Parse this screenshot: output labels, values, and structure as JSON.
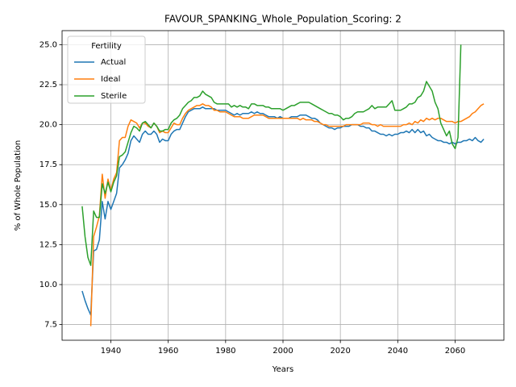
{
  "chart_data": {
    "type": "line",
    "title": "FAVOUR_SPANKING_Whole_Population_Scoring: 2",
    "x_label": "Years",
    "y_label": "% of Whole Population",
    "legend_title": "Fertility",
    "legend_position": "upper left",
    "grid": true,
    "x": [
      1930,
      1931,
      1932,
      1933,
      1934,
      1935,
      1936,
      1937,
      1938,
      1939,
      1940,
      1941,
      1942,
      1943,
      1944,
      1945,
      1946,
      1947,
      1948,
      1949,
      1950,
      1951,
      1952,
      1953,
      1954,
      1955,
      1956,
      1957,
      1958,
      1959,
      1960,
      1961,
      1962,
      1963,
      1964,
      1965,
      1966,
      1967,
      1968,
      1969,
      1970,
      1971,
      1972,
      1973,
      1974,
      1975,
      1976,
      1977,
      1978,
      1979,
      1980,
      1981,
      1982,
      1983,
      1984,
      1985,
      1986,
      1987,
      1988,
      1989,
      1990,
      1991,
      1992,
      1993,
      1994,
      1995,
      1996,
      1997,
      1998,
      1999,
      2000,
      2001,
      2002,
      2003,
      2004,
      2005,
      2006,
      2007,
      2008,
      2009,
      2010,
      2011,
      2012,
      2013,
      2014,
      2015,
      2016,
      2017,
      2018,
      2019,
      2020,
      2021,
      2022,
      2023,
      2024,
      2025,
      2026,
      2027,
      2028,
      2029,
      2030,
      2031,
      2032,
      2033,
      2034,
      2035,
      2036,
      2037,
      2038,
      2039,
      2040,
      2041,
      2042,
      2043,
      2044,
      2045,
      2046,
      2047,
      2048,
      2049,
      2050,
      2051,
      2052,
      2053,
      2054,
      2055,
      2056,
      2057,
      2058,
      2059,
      2060,
      2061,
      2062,
      2063,
      2064,
      2065,
      2066,
      2067,
      2068,
      2069,
      2070
    ],
    "xlim": [
      1923,
      2077
    ],
    "xticks": [
      1940,
      1960,
      1980,
      2000,
      2020,
      2040,
      2060
    ],
    "ylim": [
      6.52,
      25.88
    ],
    "yticks": [
      7.5,
      {
        "value": 10,
        "label": "10.0"
      },
      12.5,
      {
        "value": 15,
        "label": "15.0"
      },
      17.5,
      {
        "value": 20,
        "label": "20.0"
      },
      22.5,
      {
        "value": 25,
        "label": "25.0"
      }
    ],
    "series": [
      {
        "name": "Actual",
        "color": "#1f77b4",
        "values": [
          9.6,
          9.0,
          8.5,
          8.1,
          12.1,
          12.2,
          12.8,
          15.2,
          14.1,
          15.2,
          14.7,
          15.2,
          15.7,
          17.3,
          17.5,
          17.8,
          18.2,
          19.0,
          19.3,
          19.1,
          18.9,
          19.4,
          19.6,
          19.4,
          19.4,
          19.6,
          19.4,
          18.9,
          19.1,
          19.0,
          19.0,
          19.4,
          19.6,
          19.7,
          19.7,
          20.1,
          20.5,
          20.8,
          20.9,
          21.0,
          21.0,
          21.0,
          21.1,
          21.0,
          21.0,
          21.0,
          21.0,
          20.9,
          20.9,
          20.9,
          20.9,
          20.8,
          20.7,
          20.6,
          20.7,
          20.6,
          20.7,
          20.7,
          20.7,
          20.8,
          20.7,
          20.8,
          20.7,
          20.7,
          20.6,
          20.5,
          20.5,
          20.5,
          20.4,
          20.5,
          20.4,
          20.4,
          20.4,
          20.5,
          20.5,
          20.5,
          20.6,
          20.6,
          20.6,
          20.5,
          20.4,
          20.4,
          20.3,
          20.1,
          20.0,
          19.9,
          19.8,
          19.8,
          19.7,
          19.8,
          19.8,
          19.9,
          19.9,
          19.9,
          20.0,
          20.0,
          20.0,
          19.9,
          19.9,
          19.8,
          19.8,
          19.6,
          19.6,
          19.5,
          19.4,
          19.4,
          19.3,
          19.4,
          19.3,
          19.4,
          19.4,
          19.5,
          19.5,
          19.6,
          19.5,
          19.7,
          19.5,
          19.7,
          19.5,
          19.6,
          19.3,
          19.4,
          19.2,
          19.1,
          19.0,
          19.0,
          18.9,
          18.9,
          18.8,
          18.9,
          18.8,
          18.9,
          18.9,
          19.0,
          19.0,
          19.1,
          19.0,
          19.2,
          19.0,
          18.9,
          19.1
        ]
      },
      {
        "name": "Ideal",
        "color": "#ff7f0e",
        "values": [
          null,
          null,
          null,
          7.4,
          13.0,
          13.6,
          14.3,
          16.9,
          15.4,
          16.6,
          15.9,
          16.6,
          17.0,
          19.0,
          19.2,
          19.2,
          19.9,
          20.3,
          20.2,
          20.1,
          19.8,
          20.1,
          20.1,
          19.9,
          19.8,
          20.1,
          19.9,
          19.5,
          19.6,
          19.5,
          19.5,
          19.8,
          20.1,
          20.0,
          20.0,
          20.4,
          20.7,
          20.9,
          21.0,
          21.1,
          21.2,
          21.2,
          21.3,
          21.2,
          21.2,
          21.1,
          20.9,
          20.9,
          20.8,
          20.8,
          20.8,
          20.7,
          20.6,
          20.5,
          20.5,
          20.5,
          20.4,
          20.4,
          20.4,
          20.5,
          20.6,
          20.6,
          20.6,
          20.6,
          20.5,
          20.4,
          20.4,
          20.4,
          20.4,
          20.4,
          20.4,
          20.4,
          20.4,
          20.4,
          20.4,
          20.4,
          20.3,
          20.4,
          20.3,
          20.3,
          20.3,
          20.2,
          20.2,
          20.1,
          20.0,
          20.0,
          19.9,
          19.9,
          19.9,
          19.9,
          19.9,
          19.9,
          20.0,
          20.0,
          20.0,
          20.0,
          20.0,
          20.0,
          20.1,
          20.1,
          20.1,
          20.0,
          20.0,
          19.9,
          20.0,
          19.9,
          19.9,
          19.9,
          19.9,
          19.9,
          19.9,
          19.9,
          20.0,
          20.0,
          20.1,
          20.0,
          20.2,
          20.1,
          20.3,
          20.2,
          20.4,
          20.3,
          20.4,
          20.3,
          20.4,
          20.4,
          20.3,
          20.2,
          20.2,
          20.2,
          20.1,
          20.2,
          20.2,
          20.3,
          20.4,
          20.5,
          20.7,
          20.8,
          21.0,
          21.2,
          21.3
        ]
      },
      {
        "name": "Sterile",
        "color": "#2ca02c",
        "values": [
          14.9,
          13.0,
          11.7,
          11.2,
          14.6,
          14.2,
          14.2,
          16.3,
          15.7,
          16.4,
          15.8,
          16.4,
          16.8,
          18.0,
          18.1,
          18.3,
          18.9,
          19.5,
          19.9,
          19.8,
          19.6,
          20.1,
          20.2,
          20.0,
          19.8,
          20.1,
          19.9,
          19.6,
          19.6,
          19.7,
          19.7,
          20.1,
          20.3,
          20.4,
          20.6,
          21.0,
          21.2,
          21.4,
          21.5,
          21.7,
          21.7,
          21.8,
          22.1,
          21.9,
          21.8,
          21.7,
          21.4,
          21.3,
          21.3,
          21.3,
          21.3,
          21.3,
          21.1,
          21.2,
          21.1,
          21.2,
          21.1,
          21.1,
          21.0,
          21.3,
          21.3,
          21.2,
          21.2,
          21.2,
          21.1,
          21.1,
          21.0,
          21.0,
          21.0,
          21.0,
          20.9,
          21.0,
          21.1,
          21.2,
          21.2,
          21.3,
          21.4,
          21.4,
          21.4,
          21.4,
          21.3,
          21.2,
          21.1,
          21.0,
          20.9,
          20.8,
          20.7,
          20.7,
          20.6,
          20.6,
          20.5,
          20.3,
          20.4,
          20.4,
          20.5,
          20.7,
          20.8,
          20.8,
          20.8,
          20.9,
          21.0,
          21.2,
          21.0,
          21.1,
          21.1,
          21.1,
          21.1,
          21.3,
          21.5,
          20.9,
          20.9,
          20.9,
          21.0,
          21.1,
          21.3,
          21.3,
          21.4,
          21.7,
          21.8,
          22.1,
          22.7,
          22.4,
          22.1,
          21.4,
          21.0,
          20.1,
          19.7,
          19.3,
          19.6,
          18.8,
          18.5,
          19.2,
          25.0,
          null,
          null,
          null,
          null,
          null,
          null,
          null,
          null
        ]
      }
    ]
  }
}
